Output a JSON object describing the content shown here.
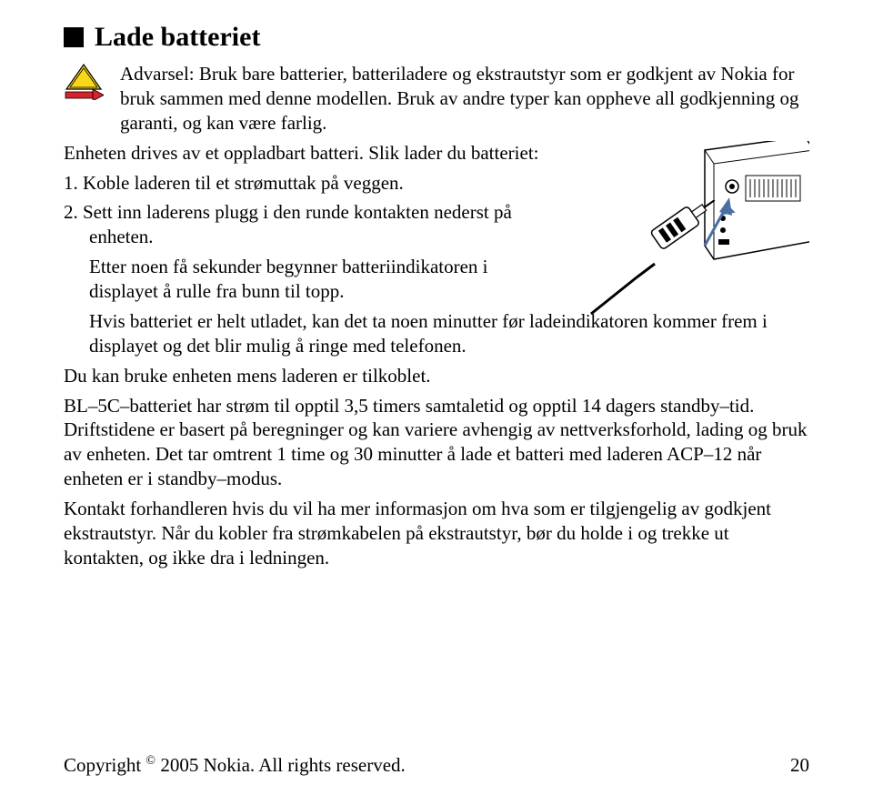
{
  "heading": "Lade batteriet",
  "warning": "Advarsel: Bruk bare batterier, batteriladere og ekstrautstyr som er godkjent av Nokia for bruk sammen med denne modellen. Bruk av andre typer kan oppheve all godkjenning og garanti, og kan være farlig.",
  "p1a": "Enheten drives av et oppladbart batteri. Slik lader du batteriet:",
  "li1": "1.  Koble laderen til et strømuttak på veggen.",
  "li2": "2.  Sett inn laderens plugg i den runde kontakten nederst på enheten.",
  "p_after": "Etter noen få sekunder begynner batteriindikatoren i displayet å rulle fra bunn til topp. Hvis batteriet er helt utladet, kan det ta noen minutter før ladeindikatoren kommer frem i displayet og det blir mulig å ringe med telefonen.",
  "p_after_narrow": "Etter noen få sekunder begynner batteriindikatoren i displayet å rulle fra bunn til topp.",
  "p_after_wide": "Hvis batteriet er helt utladet, kan det ta noen minutter før ladeindikatoren kommer frem i displayet og det blir mulig å ringe med telefonen.",
  "p3": "Du kan bruke enheten mens laderen er tilkoblet.",
  "p4": "BL–5C–batteriet har strøm til opptil 3,5 timers samtaletid og opptil 14 dagers standby–tid. Driftstidene er basert på beregninger og kan variere avhengig av nettverksforhold, lading og bruk av enheten. Det tar omtrent 1 time og 30 minutter å lade et batteri med laderen ACP–12 når enheten er i standby–modus.",
  "p5": "Kontakt forhandleren hvis du vil ha mer informasjon om hva som er tilgjengelig av godkjent ekstrautstyr. Når du kobler fra strømkabelen på ekstrautstyr, bør du holde i og trekke ut kontakten, og ikke dra i ledningen.",
  "copyright_pre": "Copyright ",
  "copyright_sym": "©",
  "copyright_post": " 2005 Nokia. All rights reserved.",
  "pagenum": "20",
  "colors": {
    "warn_yellow": "#f9d71c",
    "warn_red": "#d8232a",
    "device_fill": "#f0f0f0",
    "device_stroke": "#000000"
  }
}
